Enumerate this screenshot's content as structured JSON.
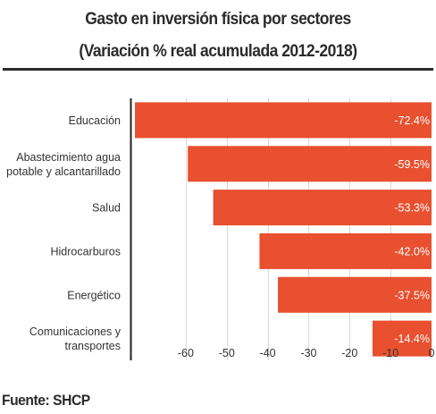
{
  "chart_data": {
    "type": "bar",
    "orientation": "horizontal",
    "title": "Gasto en inversión física por sectores",
    "subtitle": "(Variación % real acumulada 2012-2018)",
    "categories": [
      "Educación",
      "Abastecimiento agua potable y alcantarillado",
      "Salud",
      "Hidrocarburos",
      "Energético",
      "Comunicaciones y transportes"
    ],
    "category_lines": [
      [
        "Educación"
      ],
      [
        "Abastecimiento agua",
        "potable y alcantarillado"
      ],
      [
        "Salud"
      ],
      [
        "Hidrocarburos"
      ],
      [
        "Energético"
      ],
      [
        "Comunicaciones y",
        "transportes"
      ]
    ],
    "values": [
      -72.4,
      -59.5,
      -53.3,
      -42.0,
      -37.5,
      -14.4
    ],
    "value_labels": [
      "-72.4%",
      "-59.5%",
      "-53.3%",
      "-42.0%",
      "-37.5%",
      "-14.4%"
    ],
    "xticks": [
      -60,
      -50,
      -40,
      -30,
      -20,
      -10,
      0
    ],
    "xlim": [
      -73.5,
      0
    ],
    "xlabel": "",
    "ylabel": "",
    "grid": true,
    "legend": "none",
    "bar_color": "#e8502f",
    "label_color": "#ffffff",
    "grid_color": "#d9d9d9",
    "axis_color": "#222222",
    "text_color": "#333333"
  },
  "source": "Fuente: SHCP"
}
